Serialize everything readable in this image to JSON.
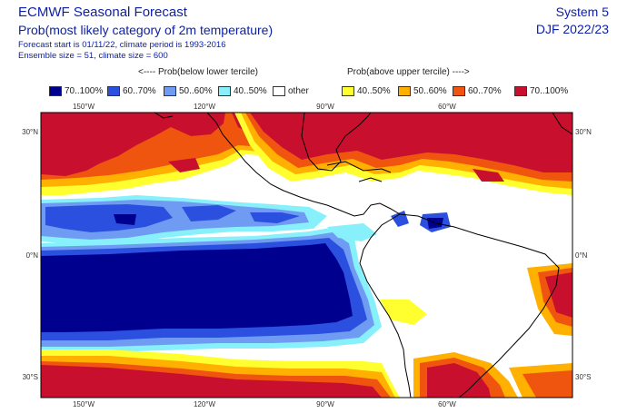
{
  "header": {
    "title": "ECMWF Seasonal Forecast",
    "subtitle": "Prob(most likely category of 2m temperature)",
    "info_line1": "Forecast start is 01/11/22, climate period is 1993-2016",
    "info_line2": "Ensemble size = 51, climate size = 600",
    "system": "System 5",
    "season": "DJF 2022/23"
  },
  "legend": {
    "below_label": "<---- Prob(below lower tercile)",
    "above_label": "Prob(above upper tercile) ---->",
    "items": [
      {
        "label": "70..100%",
        "color": "#00008f"
      },
      {
        "label": "60..70%",
        "color": "#2b50e0"
      },
      {
        "label": "50..60%",
        "color": "#6f9cf2"
      },
      {
        "label": "40..50%",
        "color": "#87f0fa"
      },
      {
        "label": "other",
        "color": "#ffffff"
      },
      {
        "label": "40..50%",
        "color": "#ffff30"
      },
      {
        "label": "50..60%",
        "color": "#ffb000"
      },
      {
        "label": "60..70%",
        "color": "#f05510"
      },
      {
        "label": "70..100%",
        "color": "#c8102e"
      }
    ]
  },
  "map": {
    "lon_labels": [
      "150°W",
      "120°W",
      "90°W",
      "60°W"
    ],
    "lat_labels": [
      "30°N",
      "0°N",
      "30°S"
    ],
    "land_color": "#ffffff",
    "coast_color": "#000000"
  }
}
